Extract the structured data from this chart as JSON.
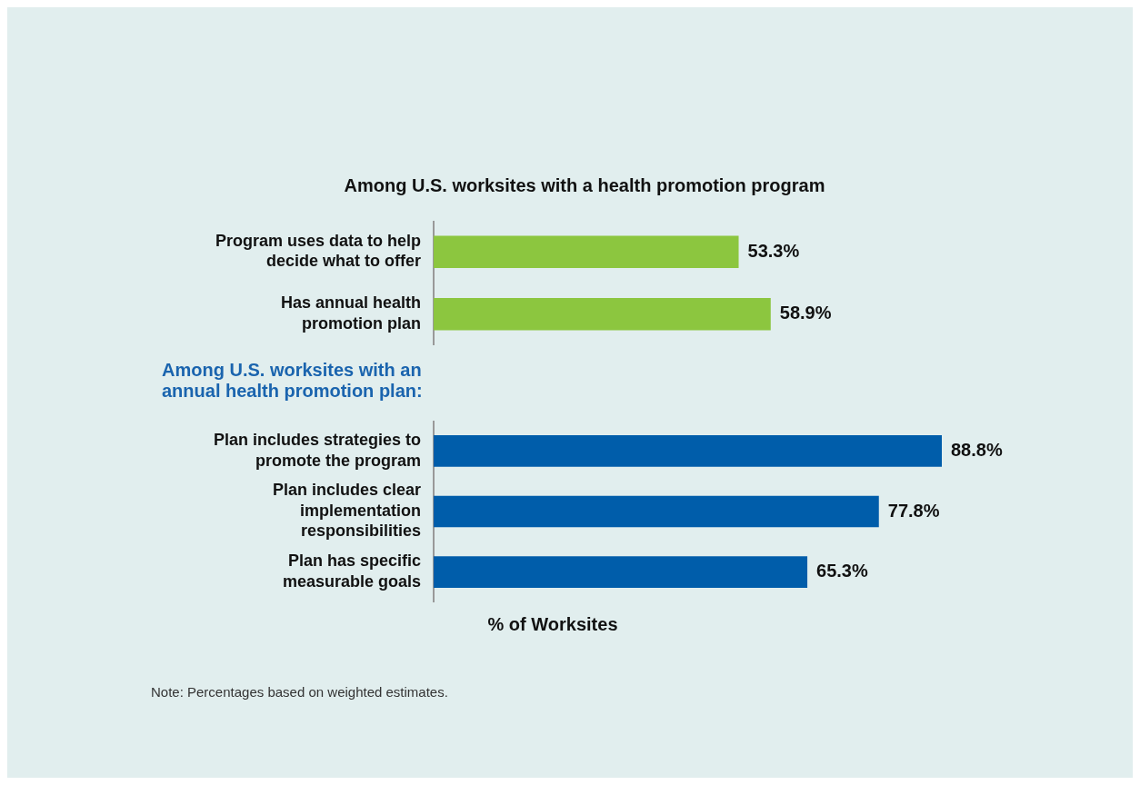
{
  "chart_data": [
    {
      "type": "bar",
      "orientation": "horizontal",
      "title": "Among U.S. worksites with a health promotion program",
      "categories": [
        "Program uses data to help decide what to offer",
        "Has annual health promotion plan"
      ],
      "values": [
        53.3,
        58.9
      ],
      "value_labels": [
        "53.3%",
        "58.9%"
      ],
      "color": "#8cc63f",
      "tick_labels": "y"
    },
    {
      "type": "bar",
      "orientation": "horizontal",
      "title": "Among U.S. worksites with an annual health promotion plan:",
      "categories": [
        "Plan includes strategies to promote the program",
        "Plan includes clear implementation responsibilities",
        "Plan has specific measurable goals"
      ],
      "values": [
        88.8,
        77.8,
        65.3
      ],
      "value_labels": [
        "88.8%",
        "77.8%",
        "65.3%"
      ],
      "color": "#005daa",
      "tick_labels": "y",
      "xlabel": "% of Worksites",
      "annotations": [
        "Note: Percentages based on weighted estimates."
      ]
    }
  ]
}
